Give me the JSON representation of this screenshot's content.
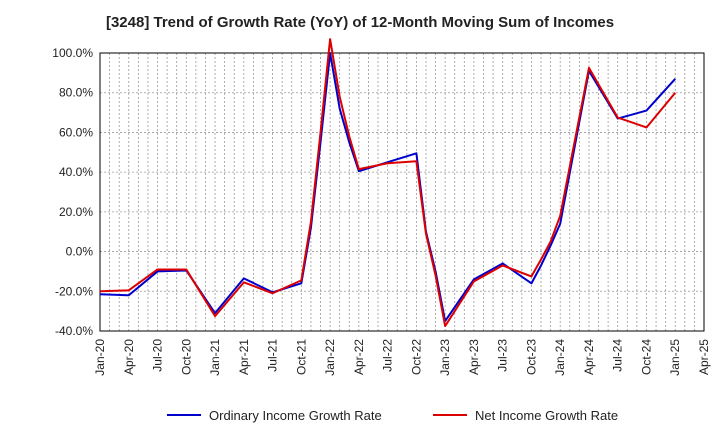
{
  "chart_data": {
    "type": "line",
    "title": "[3248]  Trend of Growth Rate (YoY) of 12-Month Moving Sum of Incomes",
    "xlabel": "",
    "ylabel": "",
    "x": [
      "Jan-20",
      "Apr-20",
      "Jul-20",
      "Oct-20",
      "Jan-21",
      "Apr-21",
      "Jul-21",
      "Oct-21",
      "Jan-22",
      "Apr-22",
      "Jul-22",
      "Oct-22",
      "Jan-23",
      "Apr-23",
      "Jul-23",
      "Oct-23",
      "Jan-24",
      "Apr-24",
      "Jul-24",
      "Oct-24",
      "Jan-25",
      "Apr-25"
    ],
    "ylim": [
      -40,
      100
    ],
    "yticks": [
      "100.0%",
      "80.0%",
      "60.0%",
      "40.0%",
      "20.0%",
      "0.0%",
      "-20.0%",
      "-40.0%"
    ],
    "grid": true,
    "legend_position": "bottom",
    "series": [
      {
        "name": "Ordinary Income Growth Rate",
        "color": "#0000cc",
        "points": [
          [
            "Jan-20",
            -21.5
          ],
          [
            "Apr-20",
            -22.0
          ],
          [
            "Jul-20",
            -10.0
          ],
          [
            "Oct-20",
            -9.5
          ],
          [
            "Jan-21",
            -31.0
          ],
          [
            "Apr-21",
            -13.5
          ],
          [
            "Jul-21",
            -20.5
          ],
          [
            "Oct-21",
            -16.0
          ],
          [
            "Nov-21",
            12.0
          ],
          [
            "Dec-21",
            55.0
          ],
          [
            "Jan-22",
            100.0
          ],
          [
            "Feb-22",
            72.0
          ],
          [
            "Mar-22",
            55.0
          ],
          [
            "Apr-22",
            40.5
          ],
          [
            "Jul-22",
            45.0
          ],
          [
            "Oct-22",
            49.5
          ],
          [
            "Nov-22",
            10.0
          ],
          [
            "Dec-22",
            -10.0
          ],
          [
            "Jan-23",
            -35.0
          ],
          [
            "Apr-23",
            -14.0
          ],
          [
            "Jul-23",
            -6.0
          ],
          [
            "Oct-23",
            -16.0
          ],
          [
            "Nov-23",
            -7.0
          ],
          [
            "Dec-23",
            3.0
          ],
          [
            "Jan-24",
            14.0
          ],
          [
            "Apr-24",
            91.0
          ],
          [
            "Jul-24",
            67.0
          ],
          [
            "Oct-24",
            71.0
          ],
          [
            "Jan-25",
            87.0
          ]
        ]
      },
      {
        "name": "Net Income Growth Rate",
        "color": "#dd0000",
        "points": [
          [
            "Jan-20",
            -20.0
          ],
          [
            "Apr-20",
            -19.5
          ],
          [
            "Jul-20",
            -9.0
          ],
          [
            "Oct-20",
            -9.0
          ],
          [
            "Jan-21",
            -32.5
          ],
          [
            "Apr-21",
            -15.5
          ],
          [
            "Jul-21",
            -21.0
          ],
          [
            "Oct-21",
            -14.5
          ],
          [
            "Nov-21",
            15.0
          ],
          [
            "Dec-21",
            60.0
          ],
          [
            "Jan-22",
            107.0
          ],
          [
            "Feb-22",
            78.0
          ],
          [
            "Mar-22",
            58.0
          ],
          [
            "Apr-22",
            41.5
          ],
          [
            "Jul-22",
            44.5
          ],
          [
            "Oct-22",
            45.5
          ],
          [
            "Nov-22",
            9.0
          ],
          [
            "Dec-22",
            -12.0
          ],
          [
            "Jan-23",
            -37.5
          ],
          [
            "Apr-23",
            -15.0
          ],
          [
            "Jul-23",
            -7.0
          ],
          [
            "Oct-23",
            -12.5
          ],
          [
            "Nov-23",
            -4.0
          ],
          [
            "Dec-23",
            5.0
          ],
          [
            "Jan-24",
            18.0
          ],
          [
            "Apr-24",
            92.5
          ],
          [
            "Jul-24",
            67.5
          ],
          [
            "Oct-24",
            62.5
          ],
          [
            "Jan-25",
            80.0
          ]
        ]
      }
    ]
  }
}
